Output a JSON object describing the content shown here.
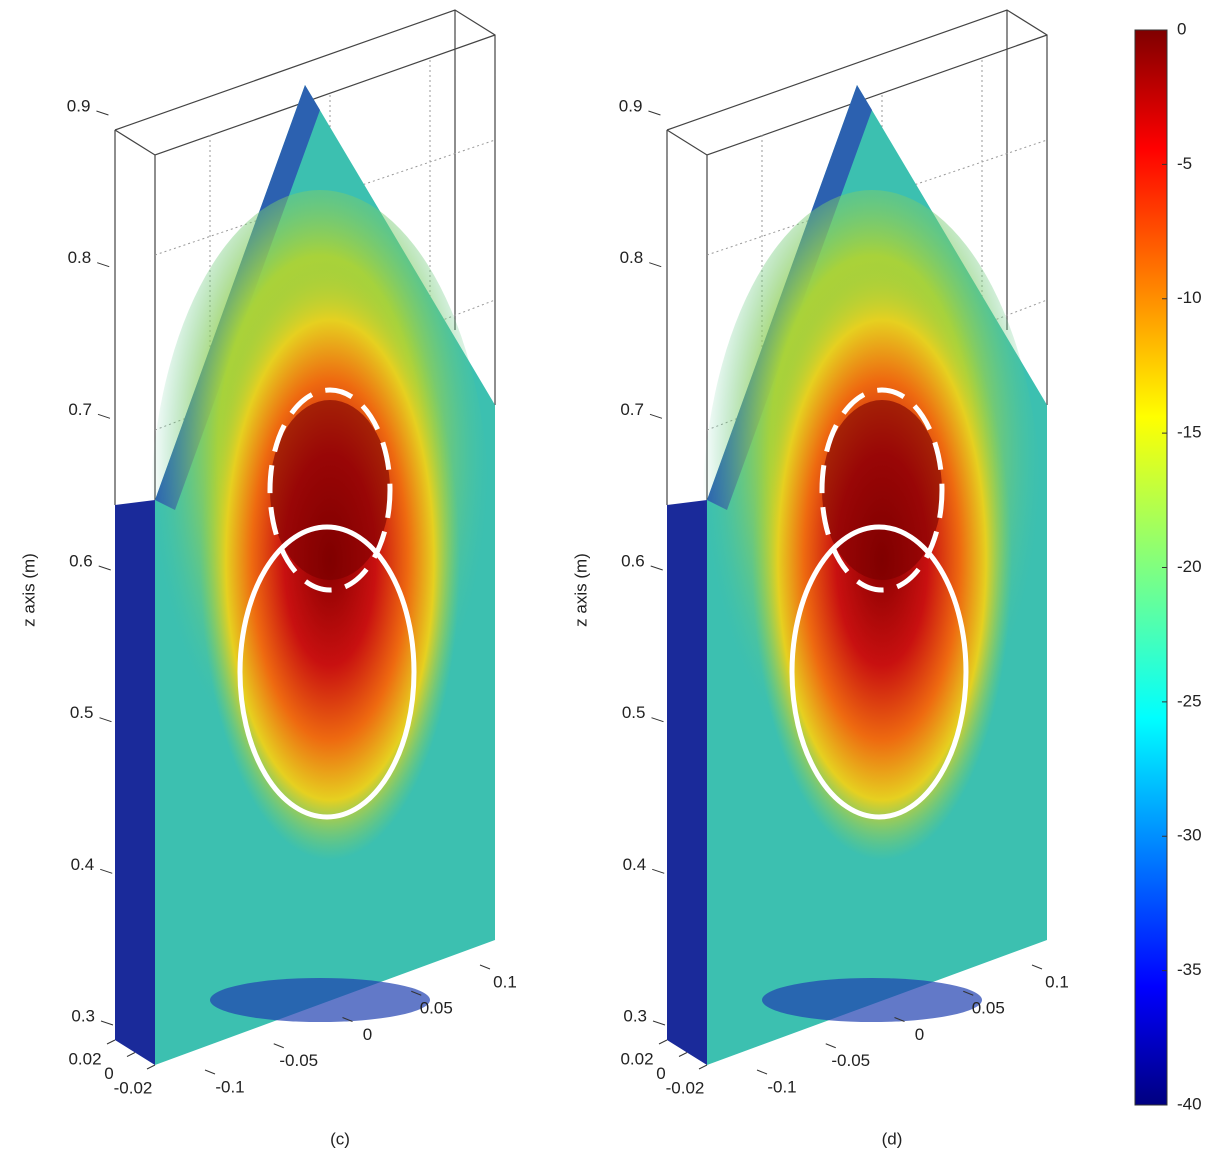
{
  "chart_data": [
    {
      "type": "surface3d",
      "panel_label": "(c)",
      "z_label": "z axis (m)",
      "zlim": [
        0.3,
        0.9
      ],
      "zticks": [
        0.3,
        0.4,
        0.5,
        0.6,
        0.7,
        0.8,
        0.9
      ],
      "xlim": [
        -0.1,
        0.1
      ],
      "xticks": [
        -0.1,
        -0.05,
        0,
        0.05,
        0.1
      ],
      "ylim": [
        -0.02,
        0.02
      ],
      "yticks": [
        0.02,
        0,
        -0.02
      ]
    },
    {
      "type": "surface3d",
      "panel_label": "(d)",
      "z_label": "z axis (m)",
      "zlim": [
        0.3,
        0.9
      ],
      "zticks": [
        0.3,
        0.4,
        0.5,
        0.6,
        0.7,
        0.8,
        0.9
      ],
      "xlim": [
        -0.1,
        0.1
      ],
      "xticks": [
        -0.1,
        -0.05,
        0,
        0.05,
        0.1
      ],
      "ylim": [
        -0.02,
        0.02
      ],
      "yticks": [
        0.02,
        0,
        -0.02
      ]
    },
    {
      "type": "colorbar",
      "clim": [
        -40,
        0
      ],
      "ticks": [
        0,
        -5,
        -10,
        -15,
        -20,
        -25,
        -30,
        -35,
        -40
      ]
    }
  ],
  "axis_marker": "x"
}
